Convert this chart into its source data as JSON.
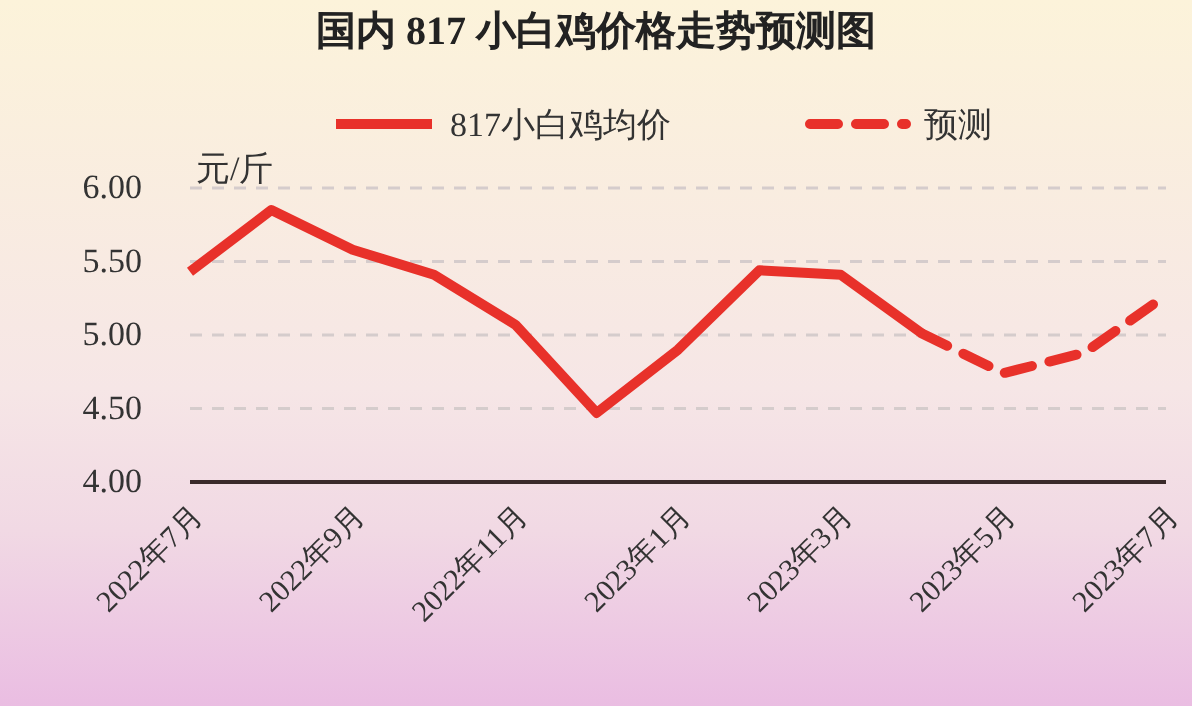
{
  "chart_data": {
    "type": "line",
    "title": "国内 817 小白鸡价格走势预测图",
    "ylabel": "元/斤",
    "categories": [
      "2022年7月",
      null,
      "2022年9月",
      null,
      "2022年11月",
      null,
      "2023年1月",
      null,
      "2023年3月",
      null,
      "2023年5月",
      null,
      "2023年7月"
    ],
    "series": [
      {
        "name": "817小白鸡均价",
        "color": "#e8312a",
        "line_style": "solid",
        "values": [
          5.43,
          5.85,
          5.58,
          5.41,
          5.07,
          4.47,
          4.9,
          5.44,
          5.41,
          5.01,
          null,
          null,
          null
        ]
      },
      {
        "name": "预测",
        "color": "#e8312a",
        "line_style": "dashed",
        "values": [
          null,
          null,
          null,
          null,
          null,
          null,
          null,
          null,
          null,
          5.01,
          4.74,
          4.88,
          5.27
        ]
      }
    ],
    "ylim": [
      4,
      6
    ],
    "yticks": [
      {
        "value": 4,
        "label": "4.00"
      },
      {
        "value": 4.5,
        "label": "4.50"
      },
      {
        "value": 5,
        "label": "5.00"
      },
      {
        "value": 5.5,
        "label": "5.50"
      },
      {
        "value": 6,
        "label": "6.00"
      }
    ],
    "grid": "y",
    "legend": "top"
  }
}
